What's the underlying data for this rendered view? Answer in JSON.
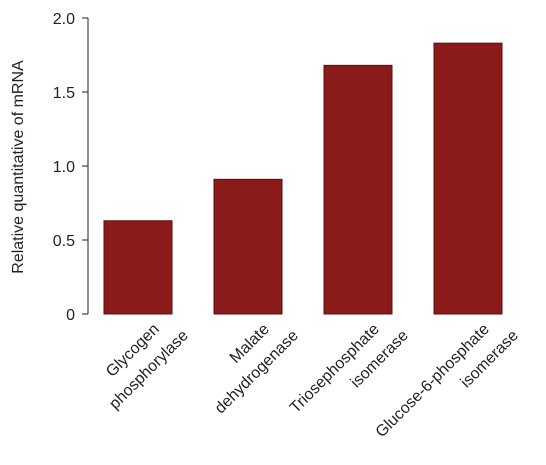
{
  "chart_data": {
    "type": "bar",
    "title": "",
    "xlabel": "",
    "ylabel": "Relative quantitative of mRNA",
    "categories": [
      [
        "Glycogen",
        "phosphorylase"
      ],
      [
        "Malate",
        "dehydrogenase"
      ],
      [
        "Triosephosphate",
        "isomerase"
      ],
      [
        "Glucose-6-phosphate",
        "isomerase"
      ]
    ],
    "values": [
      0.63,
      0.91,
      1.68,
      1.83
    ],
    "ylim": [
      0,
      2.0
    ],
    "yticks": [
      0,
      0.5,
      1.0,
      1.5,
      2.0
    ],
    "ytick_labels": [
      "0",
      "0.5",
      "1.0",
      "1.5",
      "2.0"
    ],
    "grid": false,
    "legend": "none",
    "bar_color": "#8b1a1a",
    "bar_edge_color": "#5a0f0f"
  }
}
